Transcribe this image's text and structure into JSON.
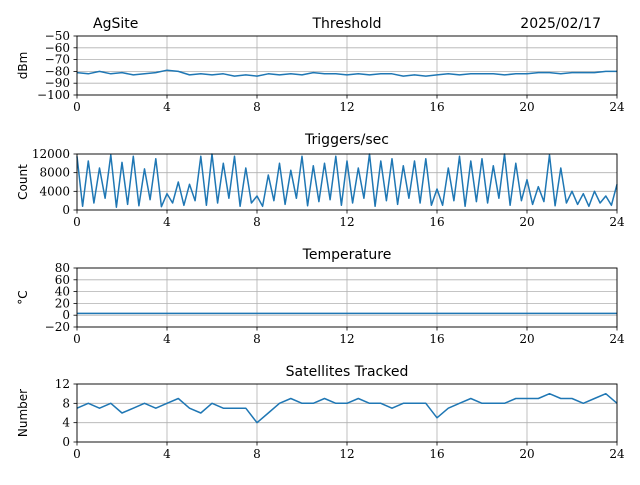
{
  "header": {
    "site": "AgSite",
    "title": "Threshold",
    "date": "2025/02/17"
  },
  "colors": {
    "series": "#1f77b4",
    "grid": "#b0b0b0"
  },
  "chart_data": [
    {
      "type": "line",
      "title": "Threshold",
      "xlabel": "",
      "ylabel": "dBm",
      "xlim": [
        0,
        24
      ],
      "ylim": [
        -100,
        -50
      ],
      "xticks": [
        0,
        4,
        8,
        12,
        16,
        20,
        24
      ],
      "yticks": [
        -50,
        -60,
        -70,
        -80,
        -90,
        -100
      ],
      "ytick_labels": [
        "−50",
        "−60",
        "−70",
        "−80",
        "−90",
        "−100"
      ],
      "grid": true,
      "x": [
        0,
        0.5,
        1,
        1.5,
        2,
        2.5,
        3,
        3.5,
        4,
        4.5,
        5,
        5.5,
        6,
        6.5,
        7,
        7.5,
        8,
        8.5,
        9,
        9.5,
        10,
        10.5,
        11,
        11.5,
        12,
        12.5,
        13,
        13.5,
        14,
        14.5,
        15,
        15.5,
        16,
        16.5,
        17,
        17.5,
        18,
        18.5,
        19,
        19.5,
        20,
        20.5,
        21,
        21.5,
        22,
        22.5,
        23,
        23.5,
        24
      ],
      "y": [
        -81,
        -82,
        -80,
        -82,
        -81,
        -83,
        -82,
        -81,
        -79,
        -80,
        -83,
        -82,
        -83,
        -82,
        -84,
        -83,
        -84,
        -82,
        -83,
        -82,
        -83,
        -81,
        -82,
        -82,
        -83,
        -82,
        -83,
        -82,
        -82,
        -84,
        -83,
        -84,
        -83,
        -82,
        -83,
        -82,
        -82,
        -82,
        -83,
        -82,
        -82,
        -81,
        -81,
        -82,
        -81,
        -81,
        -81,
        -80,
        -80
      ]
    },
    {
      "type": "line",
      "title": "Triggers/sec",
      "xlabel": "",
      "ylabel": "Count",
      "xlim": [
        0,
        24
      ],
      "ylim": [
        0,
        12000
      ],
      "xticks": [
        0,
        4,
        8,
        12,
        16,
        20,
        24
      ],
      "yticks": [
        0,
        4000,
        8000,
        12000
      ],
      "ytick_labels": [
        "0",
        "4000",
        "8000",
        "12000"
      ],
      "grid": true,
      "x": [
        0,
        0.25,
        0.5,
        0.75,
        1,
        1.25,
        1.5,
        1.75,
        2,
        2.25,
        2.5,
        2.75,
        3,
        3.25,
        3.5,
        3.75,
        4,
        4.25,
        4.5,
        4.75,
        5,
        5.25,
        5.5,
        5.75,
        6,
        6.25,
        6.5,
        6.75,
        7,
        7.25,
        7.5,
        7.75,
        8,
        8.25,
        8.5,
        8.75,
        9,
        9.25,
        9.5,
        9.75,
        10,
        10.25,
        10.5,
        10.75,
        11,
        11.25,
        11.5,
        11.75,
        12,
        12.25,
        12.5,
        12.75,
        13,
        13.25,
        13.5,
        13.75,
        14,
        14.25,
        14.5,
        14.75,
        15,
        15.25,
        15.5,
        15.75,
        16,
        16.25,
        16.5,
        16.75,
        17,
        17.25,
        17.5,
        17.75,
        18,
        18.25,
        18.5,
        18.75,
        19,
        19.25,
        19.5,
        19.75,
        20,
        20.25,
        20.5,
        20.75,
        21,
        21.25,
        21.5,
        21.75,
        22,
        22.25,
        22.5,
        22.75,
        23,
        23.25,
        23.5,
        23.75,
        24
      ],
      "y": [
        11500,
        800,
        10500,
        1500,
        9000,
        2500,
        11800,
        600,
        10200,
        1200,
        11500,
        900,
        8800,
        2200,
        11000,
        700,
        3500,
        1500,
        6000,
        1000,
        5500,
        2000,
        11500,
        1000,
        12000,
        1500,
        10000,
        2500,
        11500,
        800,
        9000,
        1500,
        3000,
        800,
        7500,
        2000,
        10000,
        1200,
        8500,
        2500,
        11500,
        900,
        9500,
        1800,
        10000,
        2200,
        11500,
        1000,
        10500,
        1500,
        9000,
        2500,
        12000,
        800,
        10500,
        2000,
        11000,
        1200,
        9500,
        2500,
        10500,
        1500,
        11000,
        1000,
        4500,
        1000,
        9000,
        2000,
        11500,
        800,
        10500,
        1800,
        11000,
        1500,
        9500,
        2500,
        12000,
        1000,
        10000,
        2000,
        6500,
        1200,
        5000,
        1800,
        11800,
        900,
        9000,
        1500,
        4000,
        1200,
        3500,
        800,
        4000,
        1500,
        3000,
        1000,
        5500
      ]
    },
    {
      "type": "line",
      "title": "Temperature",
      "xlabel": "",
      "ylabel": "°C",
      "xlim": [
        0,
        24
      ],
      "ylim": [
        -20,
        80
      ],
      "xticks": [
        0,
        4,
        8,
        12,
        16,
        20,
        24
      ],
      "yticks": [
        -20,
        0,
        20,
        40,
        60,
        80
      ],
      "ytick_labels": [
        "−20",
        "0",
        "20",
        "40",
        "60",
        "80"
      ],
      "grid": true,
      "x": [
        0,
        24
      ],
      "y": [
        3,
        3
      ]
    },
    {
      "type": "line",
      "title": "Satellites Tracked",
      "xlabel": "",
      "ylabel": "Number",
      "xlim": [
        0,
        24
      ],
      "ylim": [
        0,
        12
      ],
      "xticks": [
        0,
        4,
        8,
        12,
        16,
        20,
        24
      ],
      "yticks": [
        0,
        4,
        8,
        12
      ],
      "ytick_labels": [
        "0",
        "4",
        "8",
        "12"
      ],
      "grid": true,
      "x": [
        0,
        0.5,
        1,
        1.5,
        2,
        2.5,
        3,
        3.5,
        4,
        4.5,
        5,
        5.5,
        6,
        6.5,
        7,
        7.5,
        8,
        8.5,
        9,
        9.5,
        10,
        10.5,
        11,
        11.5,
        12,
        12.5,
        13,
        13.5,
        14,
        14.5,
        15,
        15.5,
        16,
        16.5,
        17,
        17.5,
        18,
        18.5,
        19,
        19.5,
        20,
        20.5,
        21,
        21.5,
        22,
        22.5,
        23,
        23.5,
        24
      ],
      "y": [
        7,
        8,
        7,
        8,
        6,
        7,
        8,
        7,
        8,
        9,
        7,
        6,
        8,
        7,
        7,
        7,
        4,
        6,
        8,
        9,
        8,
        8,
        9,
        8,
        8,
        9,
        8,
        8,
        7,
        8,
        8,
        8,
        5,
        7,
        8,
        9,
        8,
        8,
        8,
        9,
        9,
        9,
        10,
        9,
        9,
        8,
        9,
        10,
        8
      ]
    }
  ]
}
